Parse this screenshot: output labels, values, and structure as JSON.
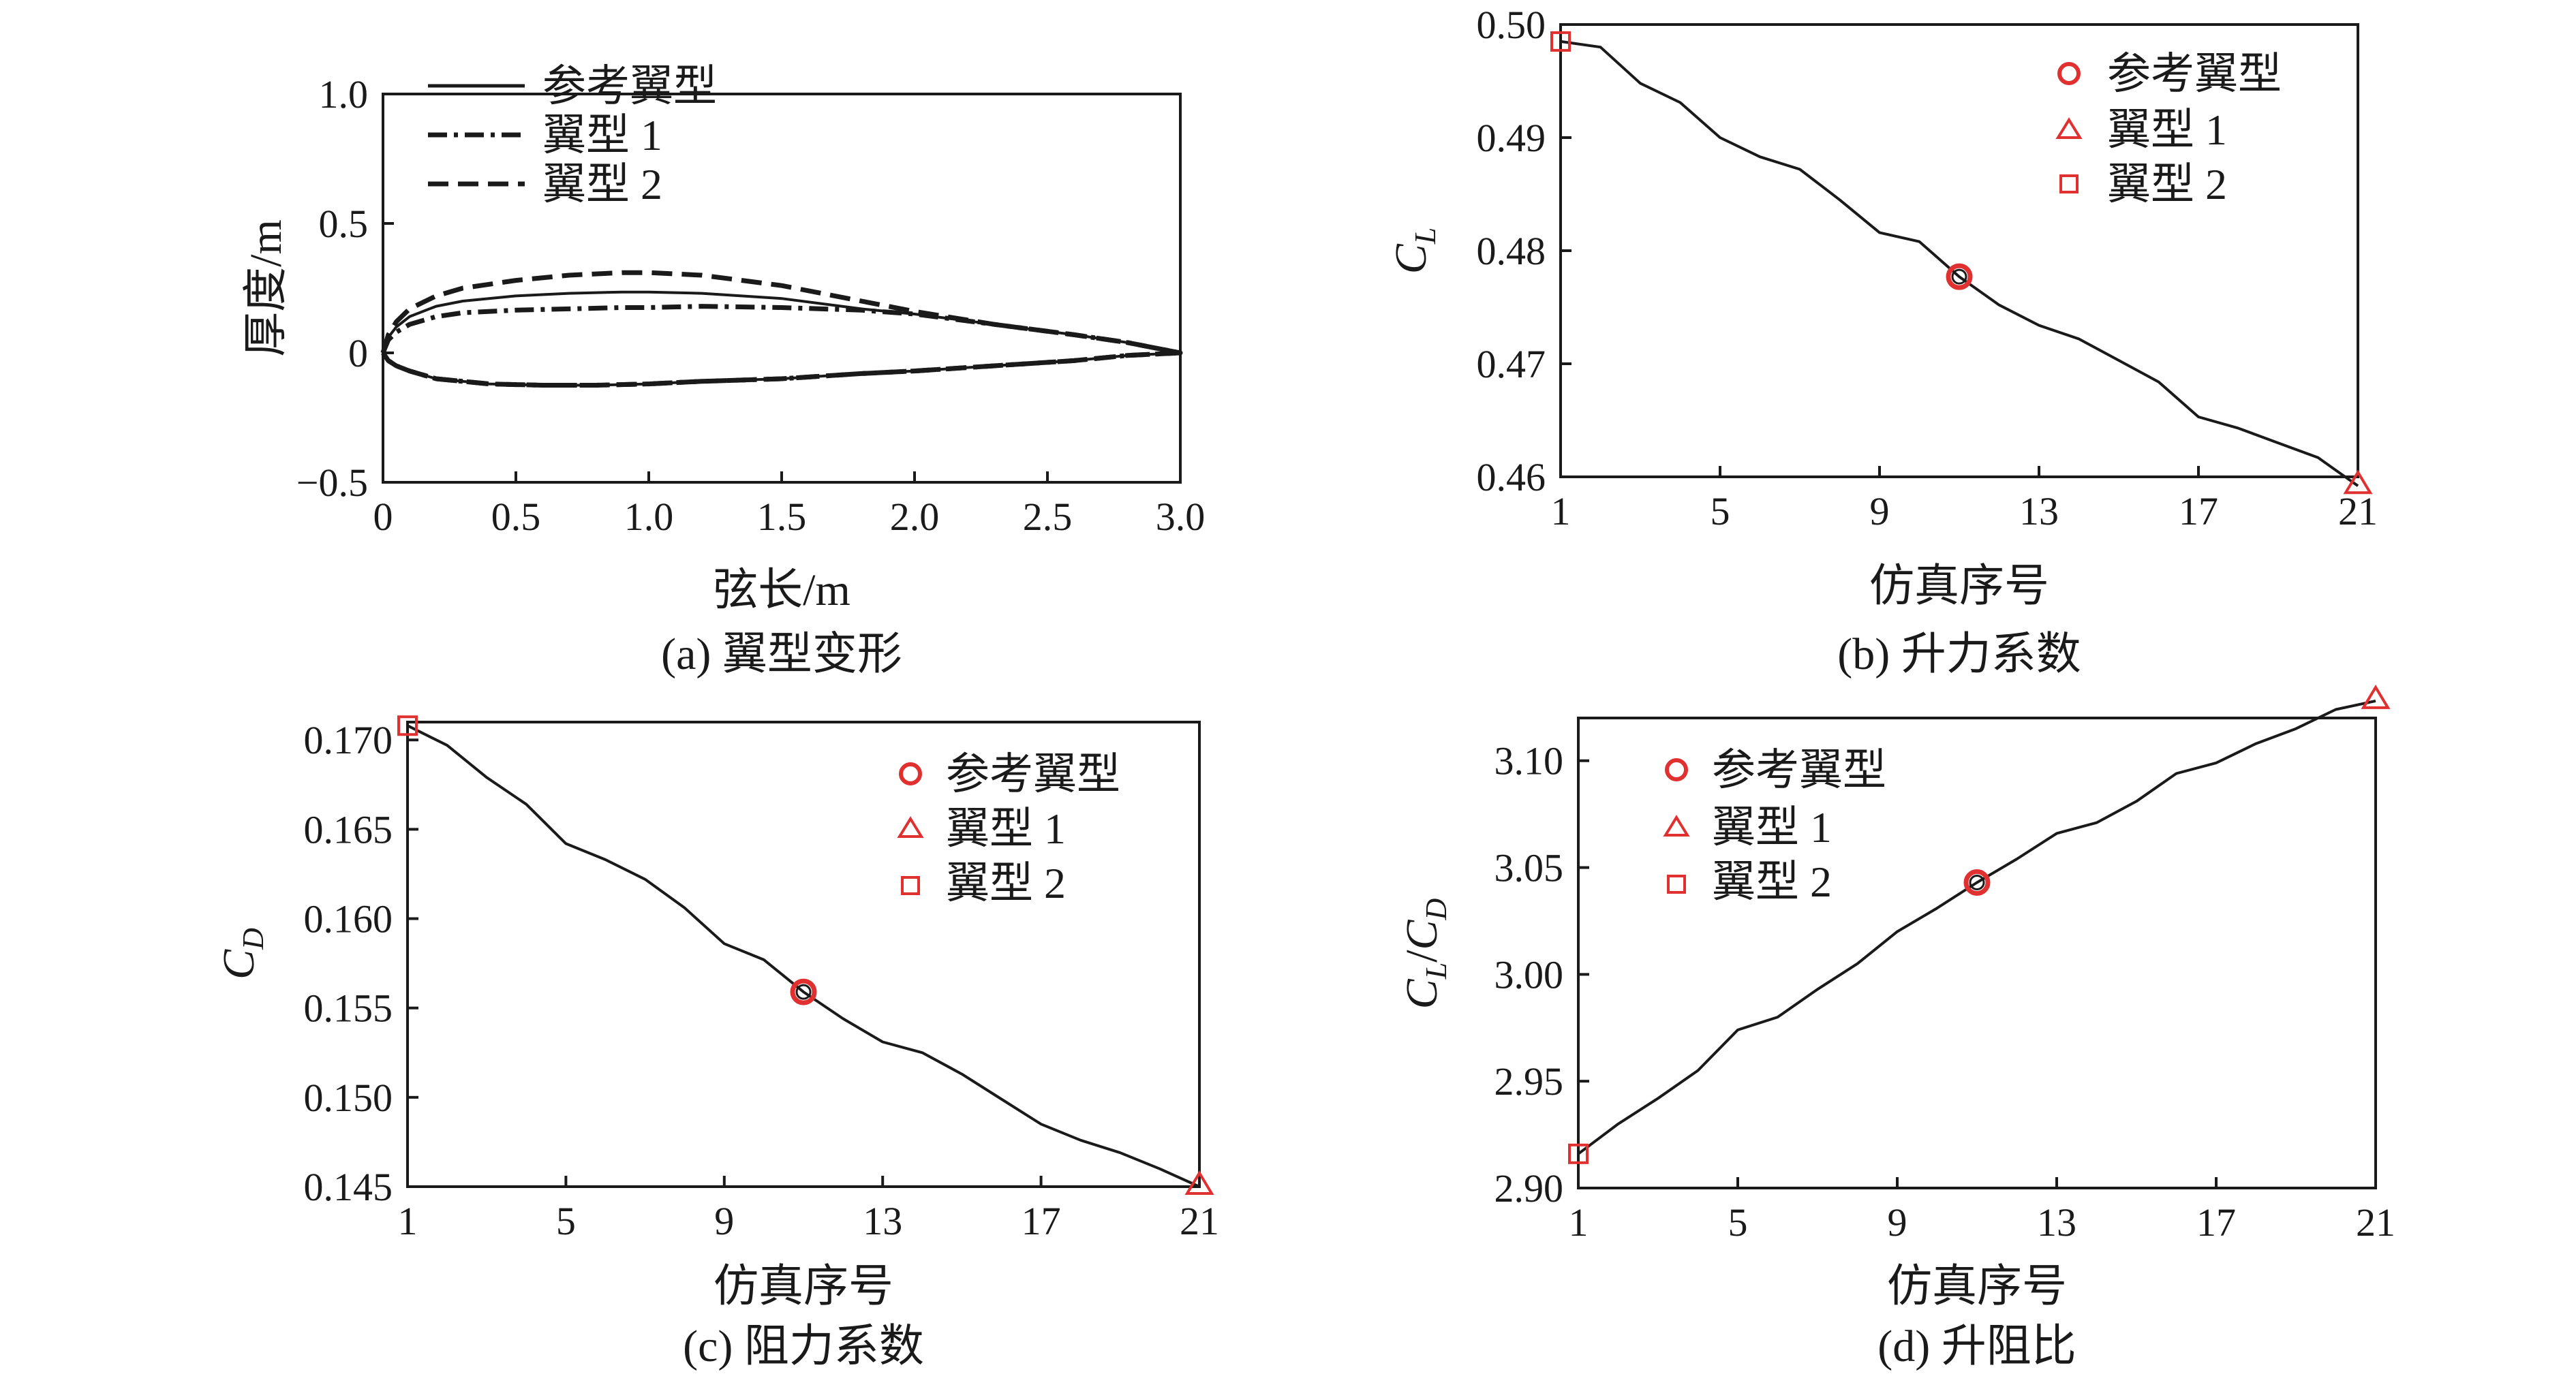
{
  "figures": [
    {
      "id": "a",
      "caption": "(a) 翼型变形",
      "chart_data": {
        "type": "line",
        "xlabel": "弦长/m",
        "ylabel": "厚度/m",
        "xlim": [
          0,
          3.0
        ],
        "ylim": [
          -0.5,
          1.0
        ],
        "xticks": [
          0,
          0.5,
          1.0,
          1.5,
          2.0,
          2.5,
          3.0
        ],
        "xtick_labels": [
          "0",
          "0.5",
          "1.0",
          "1.5",
          "2.0",
          "2.5",
          "3.0"
        ],
        "yticks": [
          -0.5,
          0,
          0.5,
          1.0
        ],
        "ytick_labels": [
          "−0.5",
          "0",
          "0.5",
          "1.0"
        ],
        "legend_position": "top-left",
        "series": [
          {
            "name": "参考翼型",
            "style": "solid",
            "x": [
              0,
              0.02,
              0.05,
              0.1,
              0.2,
              0.3,
              0.5,
              0.7,
              0.9,
              1.0,
              1.2,
              1.5,
              1.8,
              2.0,
              2.3,
              2.6,
              2.8,
              3.0,
              2.8,
              2.6,
              2.3,
              2.0,
              1.8,
              1.5,
              1.2,
              1.0,
              0.8,
              0.6,
              0.4,
              0.2,
              0.1,
              0.05,
              0.02,
              0
            ],
            "y": [
              0,
              0.06,
              0.1,
              0.14,
              0.18,
              0.2,
              0.22,
              0.23,
              0.235,
              0.235,
              0.23,
              0.21,
              0.17,
              0.15,
              0.11,
              0.07,
              0.04,
              0,
              -0.01,
              -0.03,
              -0.05,
              -0.07,
              -0.08,
              -0.1,
              -0.11,
              -0.12,
              -0.125,
              -0.125,
              -0.12,
              -0.1,
              -0.07,
              -0.05,
              -0.03,
              0
            ]
          },
          {
            "name": "翼型 1",
            "style": "dashdot",
            "x": [
              0,
              0.02,
              0.05,
              0.1,
              0.2,
              0.3,
              0.5,
              0.7,
              0.9,
              1.0,
              1.2,
              1.5,
              1.8,
              2.0,
              2.3,
              2.6,
              2.8,
              3.0,
              2.8,
              2.6,
              2.3,
              2.0,
              1.8,
              1.5,
              1.2,
              1.0,
              0.8,
              0.6,
              0.4,
              0.2,
              0.1,
              0.05,
              0.02,
              0
            ],
            "y": [
              0,
              0.05,
              0.08,
              0.11,
              0.14,
              0.155,
              0.165,
              0.17,
              0.175,
              0.175,
              0.18,
              0.175,
              0.165,
              0.15,
              0.11,
              0.07,
              0.04,
              0,
              -0.01,
              -0.03,
              -0.05,
              -0.07,
              -0.08,
              -0.1,
              -0.11,
              -0.12,
              -0.125,
              -0.125,
              -0.12,
              -0.1,
              -0.07,
              -0.05,
              -0.03,
              0
            ]
          },
          {
            "name": "翼型 2",
            "style": "dashed",
            "x": [
              0,
              0.02,
              0.05,
              0.1,
              0.2,
              0.3,
              0.5,
              0.7,
              0.9,
              1.0,
              1.2,
              1.5,
              1.8,
              2.0,
              2.3,
              2.6,
              2.8,
              3.0,
              2.8,
              2.6,
              2.3,
              2.0,
              1.8,
              1.5,
              1.2,
              1.0,
              0.8,
              0.6,
              0.4,
              0.2,
              0.1,
              0.05,
              0.02,
              0
            ],
            "y": [
              0,
              0.07,
              0.12,
              0.17,
              0.22,
              0.25,
              0.28,
              0.3,
              0.31,
              0.31,
              0.3,
              0.26,
              0.2,
              0.16,
              0.11,
              0.07,
              0.04,
              0,
              -0.01,
              -0.03,
              -0.05,
              -0.07,
              -0.08,
              -0.1,
              -0.11,
              -0.12,
              -0.125,
              -0.125,
              -0.12,
              -0.1,
              -0.07,
              -0.05,
              -0.03,
              0
            ]
          }
        ]
      }
    },
    {
      "id": "b",
      "caption": "(b) 升力系数",
      "chart_data": {
        "type": "line",
        "xlabel": "仿真序号",
        "ylabel_main": "C",
        "ylabel_sub": "L",
        "xlim": [
          1,
          21
        ],
        "ylim": [
          0.46,
          0.5
        ],
        "xticks": [
          1,
          5,
          9,
          13,
          17,
          21
        ],
        "xtick_labels": [
          "1",
          "5",
          "9",
          "13",
          "17",
          "21"
        ],
        "yticks": [
          0.46,
          0.47,
          0.48,
          0.49,
          0.5
        ],
        "ytick_labels": [
          "0.46",
          "0.47",
          "0.48",
          "0.49",
          "0.50"
        ],
        "legend_position": "top-right",
        "x": [
          1,
          2,
          3,
          4,
          5,
          6,
          7,
          8,
          9,
          10,
          11,
          12,
          13,
          14,
          15,
          16,
          17,
          18,
          19,
          20,
          21
        ],
        "y": [
          0.4985,
          0.498,
          0.4948,
          0.4931,
          0.49,
          0.4883,
          0.4872,
          0.4845,
          0.4816,
          0.4808,
          0.4777,
          0.4752,
          0.4734,
          0.4722,
          0.4703,
          0.4684,
          0.4653,
          0.4643,
          0.463,
          0.4617,
          0.4592
        ],
        "markers": [
          {
            "name": "参考翼型",
            "shape": "circle",
            "x": 11,
            "y": 0.4777
          },
          {
            "name": "翼型 1",
            "shape": "triangle",
            "x": 21,
            "y": 0.4592
          },
          {
            "name": "翼型 2",
            "shape": "square",
            "x": 1,
            "y": 0.4985
          }
        ]
      }
    },
    {
      "id": "c",
      "caption": "(c) 阻力系数",
      "chart_data": {
        "type": "line",
        "xlabel": "仿真序号",
        "ylabel_main": "C",
        "ylabel_sub": "D",
        "xlim": [
          1,
          21
        ],
        "ylim": [
          0.145,
          0.171
        ],
        "xticks": [
          1,
          5,
          9,
          13,
          17,
          21
        ],
        "xtick_labels": [
          "1",
          "5",
          "9",
          "13",
          "17",
          "21"
        ],
        "yticks": [
          0.145,
          0.15,
          0.155,
          0.16,
          0.165,
          0.17
        ],
        "ytick_labels": [
          "0.145",
          "0.150",
          "0.155",
          "0.160",
          "0.165",
          "0.170"
        ],
        "legend_position": "top-right",
        "x": [
          1,
          2,
          3,
          4,
          5,
          6,
          7,
          8,
          9,
          10,
          11,
          12,
          13,
          14,
          15,
          16,
          17,
          18,
          19,
          20,
          21
        ],
        "y": [
          0.1708,
          0.1697,
          0.1679,
          0.1664,
          0.1642,
          0.1633,
          0.1622,
          0.1606,
          0.1586,
          0.1577,
          0.1559,
          0.1544,
          0.1531,
          0.1525,
          0.1513,
          0.1499,
          0.1485,
          0.1476,
          0.1469,
          0.146,
          0.145
        ],
        "markers": [
          {
            "name": "参考翼型",
            "shape": "circle",
            "x": 11,
            "y": 0.1559
          },
          {
            "name": "翼型 1",
            "shape": "triangle",
            "x": 21,
            "y": 0.145
          },
          {
            "name": "翼型 2",
            "shape": "square",
            "x": 1,
            "y": 0.1708
          }
        ]
      }
    },
    {
      "id": "d",
      "caption": "(d) 升阻比",
      "chart_data": {
        "type": "line",
        "xlabel": "仿真序号",
        "ylabel_main1": "C",
        "ylabel_sub1": "L",
        "ylabel_sep": "/",
        "ylabel_main2": "C",
        "ylabel_sub2": "D",
        "xlim": [
          1,
          21
        ],
        "ylim": [
          2.9,
          3.12
        ],
        "xticks": [
          1,
          5,
          9,
          13,
          17,
          21
        ],
        "xtick_labels": [
          "1",
          "5",
          "9",
          "13",
          "17",
          "21"
        ],
        "yticks": [
          2.9,
          2.95,
          3.0,
          3.05,
          3.1
        ],
        "ytick_labels": [
          "2.90",
          "2.95",
          "3.00",
          "3.05",
          "3.10"
        ],
        "legend_position": "top-left",
        "x": [
          1,
          2,
          3,
          4,
          5,
          6,
          7,
          8,
          9,
          10,
          11,
          12,
          13,
          14,
          15,
          16,
          17,
          18,
          19,
          20,
          21
        ],
        "y": [
          2.916,
          2.93,
          2.942,
          2.955,
          2.974,
          2.98,
          2.993,
          3.005,
          3.02,
          3.031,
          3.043,
          3.054,
          3.066,
          3.071,
          3.081,
          3.094,
          3.099,
          3.108,
          3.115,
          3.124,
          3.128
        ],
        "markers": [
          {
            "name": "参考翼型",
            "shape": "circle",
            "x": 11,
            "y": 3.043
          },
          {
            "name": "翼型 1",
            "shape": "triangle",
            "x": 21,
            "y": 3.128
          },
          {
            "name": "翼型 2",
            "shape": "square",
            "x": 1,
            "y": 2.916
          }
        ]
      }
    }
  ],
  "colors": {
    "line": "#1a1a1a",
    "marker": "#e03030"
  }
}
